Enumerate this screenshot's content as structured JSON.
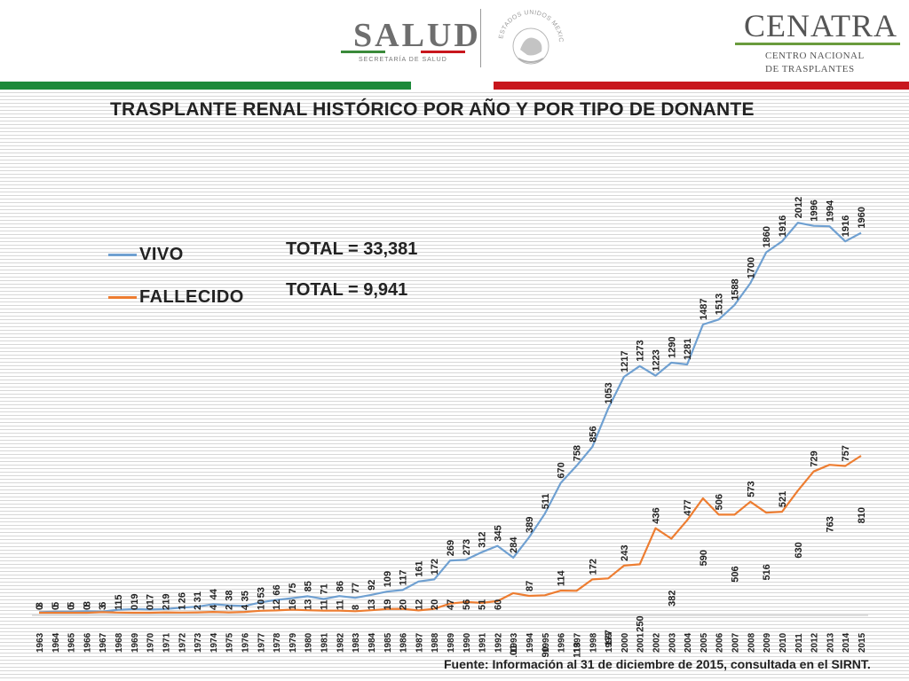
{
  "header": {
    "salud_word": "SALUD",
    "salud_sub": "SECRETARÍA DE SALUD",
    "cenatra_word": "CENATRA",
    "cenatra_sub_1": "CENTRO NACIONAL",
    "cenatra_sub_2": "DE TRASPLANTES",
    "seal_text": "ESTADOS UNIDOS MEXICANOS"
  },
  "colors": {
    "vivo": "#6fa0d1",
    "fallecido": "#ed7d31",
    "flag_green": "#1d8a3a",
    "flag_red": "#c8161d",
    "salud_green": "#3a8a3a",
    "salud_red": "#c8161d"
  },
  "source_note": "Fuente: Información al 31 de diciembre de 2015, consultada en el SIRNT.",
  "chart_data": {
    "type": "line",
    "title": "TRASPLANTE RENAL HISTÓRICO POR AÑO Y POR TIPO DE DONANTE",
    "xlabel": "",
    "ylabel": "",
    "ylim": [
      0,
      2100
    ],
    "grid": false,
    "legend_position": "top-left",
    "categories": [
      "1963",
      "1964",
      "1965",
      "1966",
      "1967",
      "1968",
      "1969",
      "1970",
      "1971",
      "1972",
      "1973",
      "1974",
      "1975",
      "1976",
      "1977",
      "1978",
      "1979",
      "1980",
      "1981",
      "1982",
      "1983",
      "1984",
      "1985",
      "1986",
      "1987",
      "1988",
      "1989",
      "1990",
      "1991",
      "1992",
      "1993",
      "1994",
      "1995",
      "1996",
      "1997",
      "1998",
      "1999",
      "2000",
      "2001",
      "2002",
      "2003",
      "2004",
      "2005",
      "2006",
      "2007",
      "2008",
      "2009",
      "2010",
      "2011",
      "2012",
      "2013",
      "2014",
      "2015"
    ],
    "series": [
      {
        "name": "VIVO",
        "total_label": "TOTAL = 33,381",
        "values": [
          3,
          5,
          5,
          8,
          6,
          15,
          19,
          17,
          19,
          26,
          31,
          44,
          38,
          35,
          53,
          66,
          75,
          85,
          71,
          86,
          77,
          92,
          109,
          117,
          161,
          172,
          269,
          273,
          312,
          345,
          284,
          389,
          511,
          670,
          758,
          856,
          1053,
          1217,
          1273,
          1223,
          1290,
          1281,
          1487,
          1513,
          1588,
          1700,
          1860,
          1916,
          2012,
          1996,
          1994,
          1916,
          1960
        ]
      },
      {
        "name": "FALLECIDO",
        "total_label": "TOTAL = 9,941",
        "values": [
          0,
          0,
          0,
          0,
          3,
          1,
          0,
          0,
          2,
          1,
          2,
          4,
          2,
          4,
          10,
          12,
          16,
          13,
          11,
          11,
          8,
          13,
          19,
          20,
          12,
          20,
          47,
          56,
          51,
          60,
          101,
          87,
          90,
          114,
          113,
          172,
          177,
          243,
          250,
          436,
          382,
          477,
          590,
          506,
          506,
          573,
          516,
          521,
          630,
          729,
          763,
          757,
          810
        ]
      }
    ]
  }
}
